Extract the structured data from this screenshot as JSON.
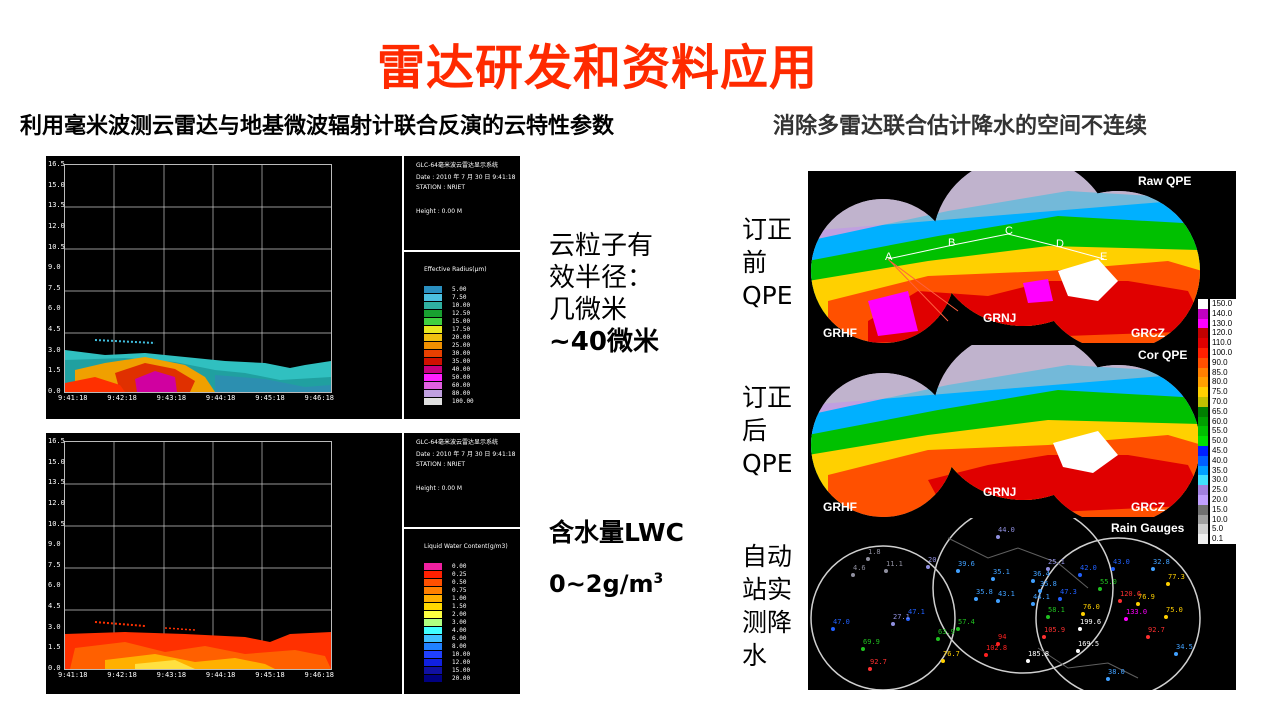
{
  "title": "雷达研发和资料应用",
  "left_subtitle": "利用毫米波测云雷达与地基微波辐射计联合反演的云特性参数",
  "right_subtitle": "消除多雷达联合估计降水的空间不连续",
  "radar_panels": [
    {
      "system": "GLC-64毫米波云雷达显示系统",
      "date": "Date :      2010 年 7 月 30 日  9:41:18",
      "station": "STATION : NRIET",
      "height": "Height :     0.00 M",
      "legend_title": "Effective Radius(μm)",
      "legend": [
        "5.00",
        "7.50",
        "10.00",
        "12.50",
        "15.00",
        "17.50",
        "20.00",
        "25.00",
        "30.00",
        "35.00",
        "40.00",
        "50.00",
        "60.00",
        "80.00",
        "100.00"
      ],
      "legend_colors": [
        "#2a8fc0",
        "#4cc0e0",
        "#2fb0a0",
        "#18a030",
        "#40d040",
        "#e8e820",
        "#f0c010",
        "#f09000",
        "#e84000",
        "#d01000",
        "#c80080",
        "#ff20ff",
        "#e060e0",
        "#c0a0e0",
        "#e0e0e0"
      ]
    },
    {
      "system": "GLC-64毫米波云雷达显示系统",
      "date": "Date :      2010 年 7 月 30 日  9:41:18",
      "station": "STATION : NRIET",
      "height": "Height :     0.00 M",
      "legend_title": "Liquid Water Content(g/m3)",
      "legend": [
        "0.00",
        "0.25",
        "0.50",
        "0.75",
        "1.00",
        "1.50",
        "2.00",
        "3.00",
        "4.00",
        "6.00",
        "8.00",
        "10.00",
        "12.00",
        "15.00",
        "20.00"
      ],
      "legend_colors": [
        "#f020a0",
        "#ff2000",
        "#ff5000",
        "#ff8000",
        "#ffb000",
        "#ffd800",
        "#ffff40",
        "#b0ff80",
        "#40ffff",
        "#40c0ff",
        "#2080ff",
        "#2040ff",
        "#1020e0",
        "#1010a0",
        "#000080"
      ]
    }
  ],
  "radar_y_ticks": [
    "16.5",
    "15.0",
    "13.5",
    "12.0",
    "10.5",
    "9.0",
    "7.5",
    "6.0",
    "4.5",
    "3.0",
    "1.5",
    "0.0"
  ],
  "radar_x_ticks": [
    "9:41:18",
    "9:42:18",
    "9:43:18",
    "9:44:18",
    "9:45:18",
    "9:46:18"
  ],
  "desc1": [
    "云粒子有",
    "效半径：",
    "几微米"
  ],
  "desc1_bold": "~40微米",
  "desc2": "含水量LWC",
  "desc2_value": "0~2g/m",
  "desc2_sup": "3",
  "before_label": [
    "订正",
    "前",
    "QPE"
  ],
  "after_label": [
    "订正",
    "后",
    "QPE"
  ],
  "gauge_label": [
    "自动",
    "站实",
    "测降",
    "水"
  ],
  "map_panels": [
    "Raw QPE",
    "Cor QPE",
    "Rain Gauges"
  ],
  "radar_sites": [
    "GRHF",
    "GRNJ",
    "GRCZ"
  ],
  "profile_points": [
    "A",
    "B",
    "C",
    "D",
    "E"
  ],
  "scale_values": [
    "150.0",
    "140.0",
    "130.0",
    "120.0",
    "110.0",
    "100.0",
    "90.0",
    "85.0",
    "80.0",
    "75.0",
    "70.0",
    "65.0",
    "60.0",
    "55.0",
    "50.0",
    "45.0",
    "40.0",
    "35.0",
    "30.0",
    "25.0",
    "20.0",
    "15.0",
    "10.0",
    "5.0",
    "0.1"
  ],
  "scale_colors": [
    "#ffffff",
    "#c000c0",
    "#ff00ff",
    "#c00000",
    "#e00000",
    "#ff2000",
    "#ff5000",
    "#ff8000",
    "#ffa000",
    "#ffd000",
    "#c0c000",
    "#008000",
    "#00a000",
    "#00c000",
    "#00e000",
    "#0020ff",
    "#0060ff",
    "#00a0ff",
    "#40e0ff",
    "#a080e0",
    "#c0a0ff",
    "#707070",
    "#a0a0a0",
    "#d0d0d0",
    "#f0f0f0"
  ],
  "gauges": [
    {
      "v": "1.8",
      "c": "#9090a0"
    },
    {
      "v": "11.1",
      "c": "#9090a0"
    },
    {
      "v": "20",
      "c": "#9090e0"
    },
    {
      "v": "4.6",
      "c": "#9090a0"
    },
    {
      "v": "39.6",
      "c": "#40a0ff"
    },
    {
      "v": "35.1",
      "c": "#40a0ff"
    },
    {
      "v": "35.8",
      "c": "#40a0ff"
    },
    {
      "v": "43.1",
      "c": "#40a0ff"
    },
    {
      "v": "47.1",
      "c": "#2060ff"
    },
    {
      "v": "47.0",
      "c": "#2060ff"
    },
    {
      "v": "27.1",
      "c": "#9090e0"
    },
    {
      "v": "69.9",
      "c": "#20c020"
    },
    {
      "v": "63.9",
      "c": "#20c020"
    },
    {
      "v": "57.4",
      "c": "#20c020"
    },
    {
      "v": "92.7",
      "c": "#ff3030"
    },
    {
      "v": "76.7",
      "c": "#ffd000"
    },
    {
      "v": "102.8",
      "c": "#ff2020"
    },
    {
      "v": "94",
      "c": "#ff2020"
    },
    {
      "v": "185.8",
      "c": "#ffffff"
    },
    {
      "v": "169.5",
      "c": "#ffffff"
    },
    {
      "v": "199.6",
      "c": "#ffffff"
    },
    {
      "v": "76.0",
      "c": "#ffd000"
    },
    {
      "v": "55.0",
      "c": "#20c020"
    },
    {
      "v": "43.0",
      "c": "#2060ff"
    },
    {
      "v": "42.0",
      "c": "#2060ff"
    },
    {
      "v": "32.8",
      "c": "#40a0ff"
    },
    {
      "v": "47.3",
      "c": "#2060ff"
    },
    {
      "v": "76.9",
      "c": "#ffd000"
    },
    {
      "v": "133.0",
      "c": "#ff00ff"
    },
    {
      "v": "75.0",
      "c": "#ffd000"
    },
    {
      "v": "92.7",
      "c": "#ff3030"
    },
    {
      "v": "77.3",
      "c": "#ffd000"
    },
    {
      "v": "34.5",
      "c": "#40a0ff"
    },
    {
      "v": "38.0",
      "c": "#40a0ff"
    },
    {
      "v": "36.4",
      "c": "#40a0ff"
    },
    {
      "v": "25.1",
      "c": "#9090e0"
    },
    {
      "v": "44.0",
      "c": "#9090e0"
    },
    {
      "v": "120.6",
      "c": "#ff3030"
    },
    {
      "v": "58.1",
      "c": "#20c020"
    },
    {
      "v": "44.1",
      "c": "#40a0ff"
    },
    {
      "v": "105.9",
      "c": "#ff3030"
    },
    {
      "v": "35.8",
      "c": "#40a0ff"
    }
  ]
}
